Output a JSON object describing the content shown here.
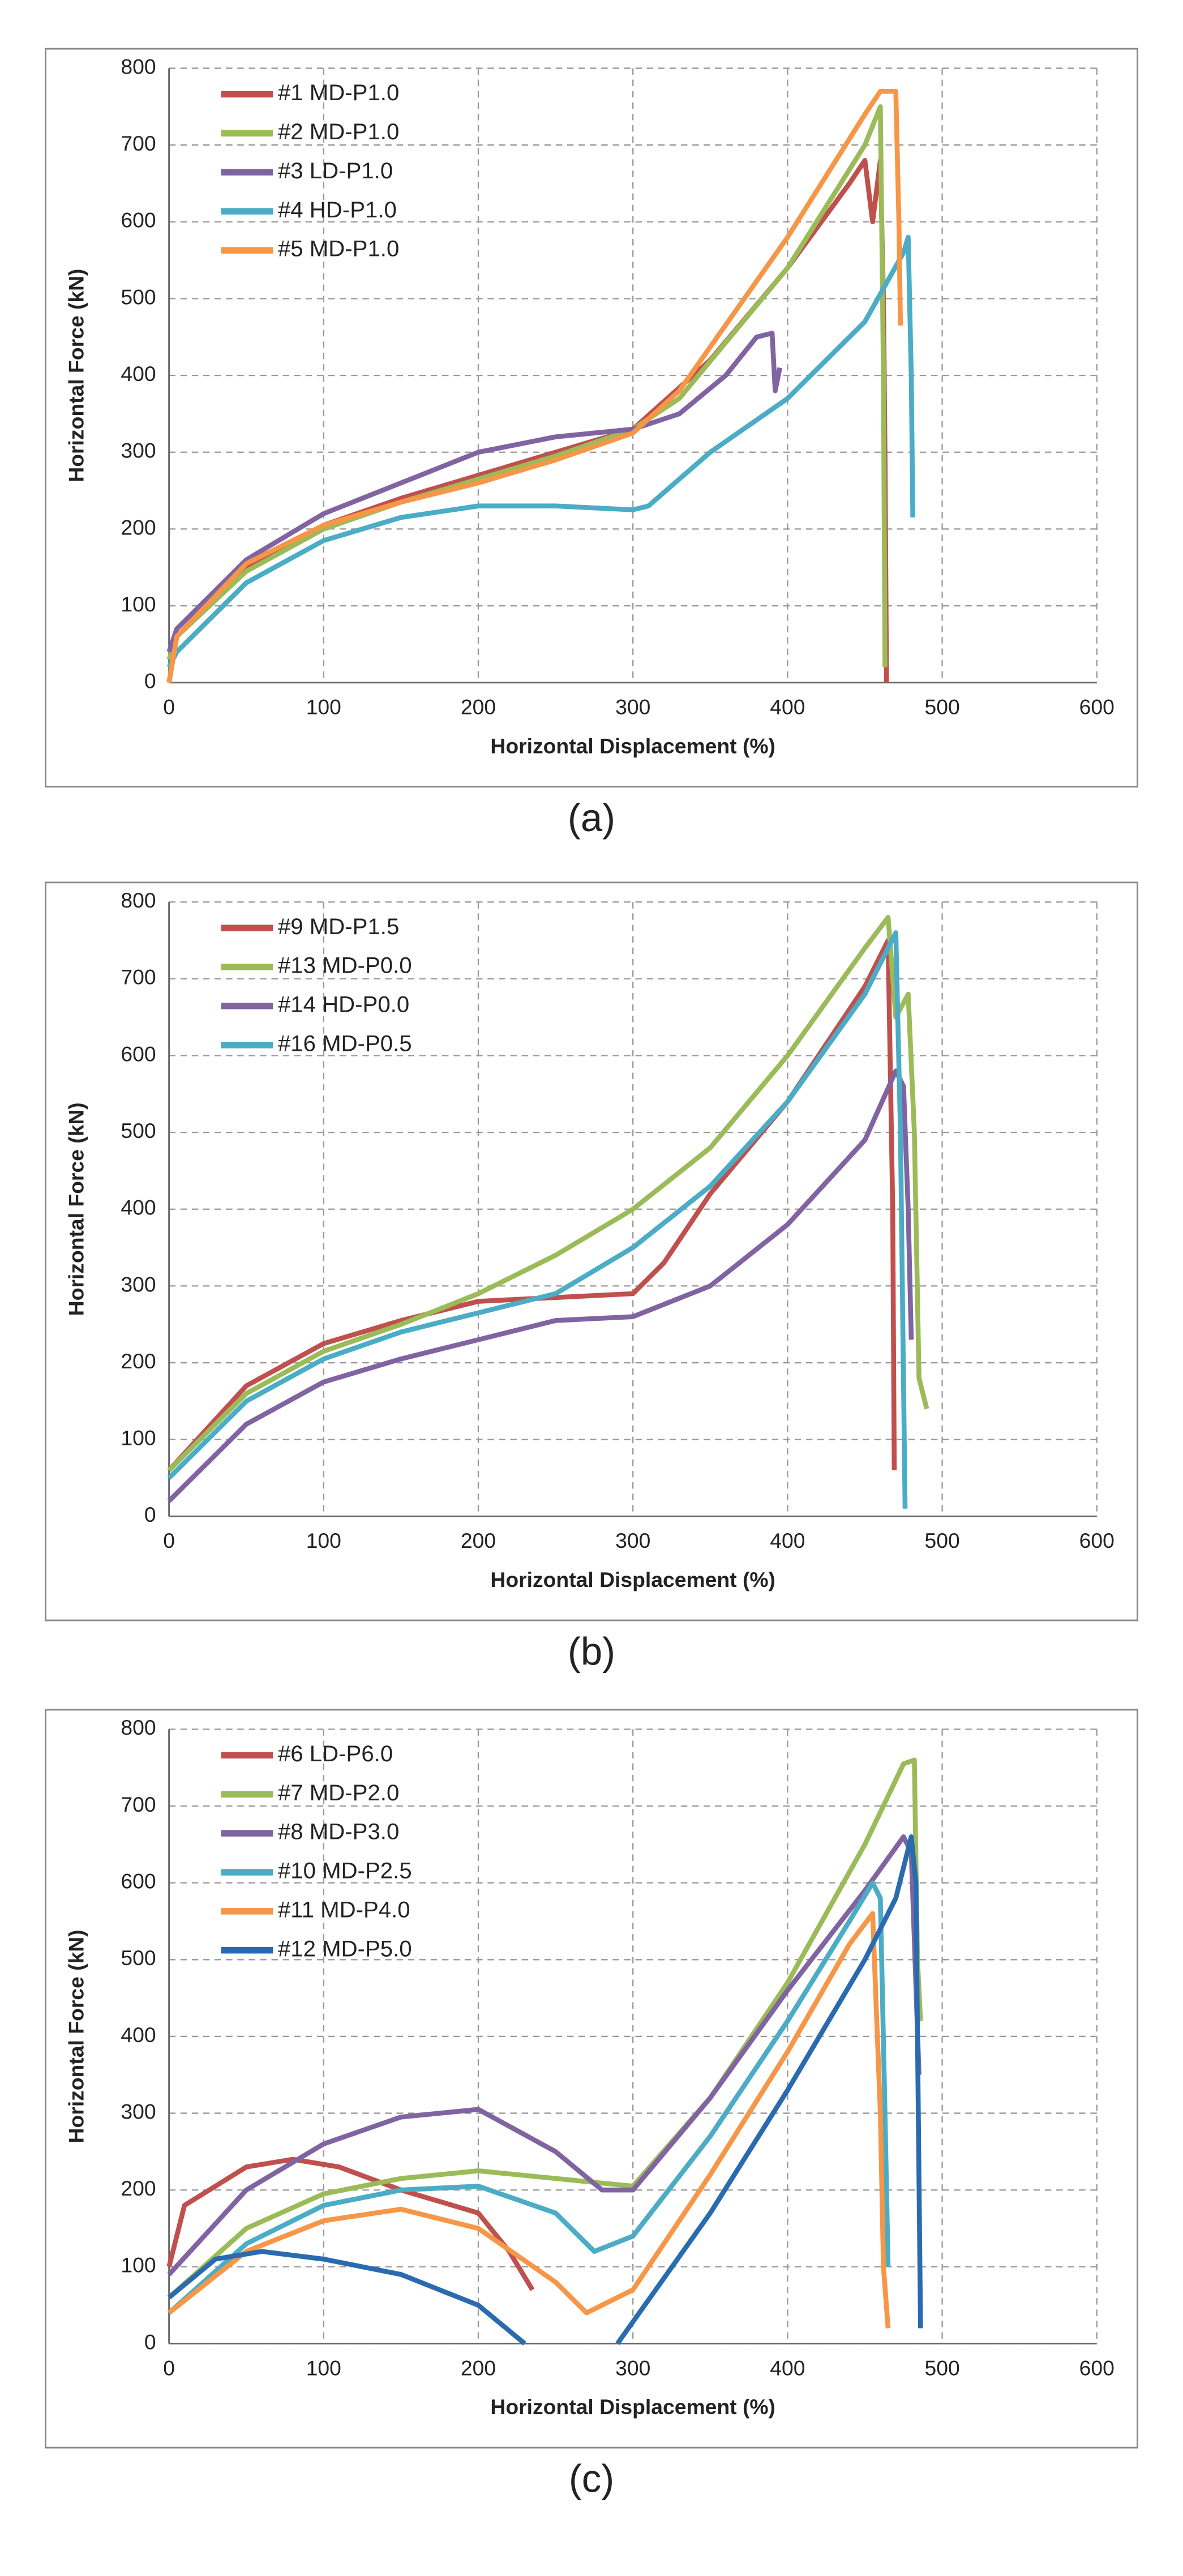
{
  "chart_data": [
    {
      "type": "line",
      "caption": "(a)",
      "x_label": "Horizontal Displacement (%)",
      "y_label": "Horizontal Force (kN)",
      "xlim": [
        0,
        600
      ],
      "ylim": [
        0,
        800
      ],
      "xticks": [
        0,
        100,
        200,
        300,
        400,
        500,
        600
      ],
      "yticks": [
        0,
        100,
        200,
        300,
        400,
        500,
        600,
        700,
        800
      ],
      "grid": true,
      "legend": "upper-left",
      "series": [
        {
          "name": "#1 MD-P1.0",
          "color": "#c0504d",
          "x": [
            0,
            5,
            50,
            100,
            150,
            200,
            250,
            300,
            350,
            400,
            440,
            450,
            455,
            460,
            462,
            463,
            464
          ],
          "values": [
            0,
            60,
            150,
            205,
            240,
            270,
            300,
            330,
            420,
            540,
            650,
            680,
            600,
            680,
            500,
            300,
            0
          ]
        },
        {
          "name": "#2 MD-P1.0",
          "color": "#9bbb59",
          "x": [
            0,
            5,
            50,
            100,
            150,
            200,
            250,
            300,
            330,
            400,
            450,
            460,
            462,
            463
          ],
          "values": [
            30,
            60,
            145,
            200,
            235,
            265,
            295,
            330,
            370,
            540,
            700,
            750,
            400,
            20
          ]
        },
        {
          "name": "#3 LD-P1.0",
          "color": "#8064a2",
          "x": [
            0,
            5,
            50,
            100,
            150,
            200,
            250,
            300,
            330,
            360,
            380,
            390,
            392,
            395
          ],
          "values": [
            40,
            70,
            160,
            220,
            260,
            300,
            320,
            330,
            350,
            400,
            450,
            455,
            380,
            410
          ]
        },
        {
          "name": "#4 HD-P1.0",
          "color": "#4bacc6",
          "x": [
            0,
            5,
            50,
            100,
            150,
            200,
            250,
            300,
            310,
            350,
            400,
            450,
            475,
            478,
            480,
            481
          ],
          "values": [
            20,
            40,
            130,
            185,
            215,
            230,
            230,
            225,
            230,
            300,
            370,
            470,
            560,
            580,
            400,
            215
          ]
        },
        {
          "name": "#5 MD-P1.0",
          "color": "#f79646",
          "x": [
            0,
            5,
            50,
            100,
            150,
            200,
            250,
            300,
            330,
            400,
            450,
            460,
            470,
            472,
            473
          ],
          "values": [
            0,
            60,
            155,
            205,
            235,
            260,
            290,
            325,
            380,
            580,
            740,
            770,
            770,
            600,
            465
          ]
        }
      ]
    },
    {
      "type": "line",
      "caption": "(b)",
      "x_label": "Horizontal Displacement (%)",
      "y_label": "Horizontal Force (kN)",
      "xlim": [
        0,
        600
      ],
      "ylim": [
        0,
        800
      ],
      "xticks": [
        0,
        100,
        200,
        300,
        400,
        500,
        600
      ],
      "yticks": [
        0,
        100,
        200,
        300,
        400,
        500,
        600,
        700,
        800
      ],
      "grid": true,
      "legend": "upper-left",
      "series": [
        {
          "name": "#9 MD-P1.5",
          "color": "#c0504d",
          "x": [
            0,
            50,
            100,
            150,
            200,
            250,
            300,
            320,
            350,
            400,
            450,
            465,
            468,
            469
          ],
          "values": [
            60,
            170,
            225,
            255,
            280,
            285,
            290,
            330,
            420,
            540,
            690,
            750,
            400,
            60
          ]
        },
        {
          "name": "#13 MD-P0.0",
          "color": "#9bbb59",
          "x": [
            0,
            50,
            100,
            150,
            200,
            250,
            300,
            350,
            400,
            450,
            465,
            470,
            478,
            482,
            485,
            490
          ],
          "values": [
            60,
            160,
            215,
            250,
            290,
            340,
            400,
            480,
            600,
            740,
            780,
            650,
            680,
            500,
            180,
            140
          ]
        },
        {
          "name": "#14 HD-P0.0",
          "color": "#8064a2",
          "x": [
            0,
            50,
            100,
            150,
            200,
            250,
            300,
            350,
            400,
            450,
            470,
            475,
            478,
            480
          ],
          "values": [
            20,
            120,
            175,
            205,
            230,
            255,
            260,
            300,
            380,
            490,
            580,
            560,
            400,
            230
          ]
        },
        {
          "name": "#16 MD-P0.5",
          "color": "#4bacc6",
          "x": [
            0,
            50,
            100,
            150,
            200,
            250,
            300,
            350,
            400,
            450,
            470,
            473,
            476
          ],
          "values": [
            50,
            150,
            205,
            240,
            265,
            290,
            350,
            430,
            540,
            680,
            760,
            500,
            10
          ]
        }
      ]
    },
    {
      "type": "line",
      "caption": "(c)",
      "x_label": "Horizontal Displacement (%)",
      "y_label": "Horizontal Force (kN)",
      "xlim": [
        0,
        600
      ],
      "ylim": [
        0,
        800
      ],
      "xticks": [
        0,
        100,
        200,
        300,
        400,
        500,
        600
      ],
      "yticks": [
        0,
        100,
        200,
        300,
        400,
        500,
        600,
        700,
        800
      ],
      "grid": true,
      "legend": "upper-left",
      "series": [
        {
          "name": "#6 LD-P6.0",
          "color": "#c0504d",
          "x": [
            0,
            10,
            50,
            80,
            110,
            150,
            200,
            220,
            235
          ],
          "values": [
            100,
            180,
            230,
            240,
            230,
            200,
            170,
            120,
            70
          ]
        },
        {
          "name": "#7 MD-P2.0",
          "color": "#9bbb59",
          "x": [
            0,
            50,
            100,
            150,
            200,
            250,
            300,
            350,
            400,
            450,
            475,
            482,
            484,
            486
          ],
          "values": [
            60,
            150,
            195,
            215,
            225,
            215,
            205,
            320,
            470,
            650,
            755,
            760,
            500,
            420
          ]
        },
        {
          "name": "#8 MD-P3.0",
          "color": "#8064a2",
          "x": [
            0,
            50,
            100,
            150,
            200,
            250,
            280,
            300,
            350,
            400,
            450,
            475,
            480,
            485
          ],
          "values": [
            90,
            200,
            260,
            295,
            305,
            250,
            200,
            200,
            320,
            460,
            590,
            660,
            640,
            350
          ]
        },
        {
          "name": "#10 MD-P2.5",
          "color": "#4bacc6",
          "x": [
            0,
            50,
            100,
            150,
            200,
            250,
            275,
            300,
            350,
            400,
            440,
            455,
            460,
            463,
            465
          ],
          "values": [
            40,
            130,
            180,
            200,
            205,
            170,
            120,
            140,
            270,
            420,
            550,
            600,
            580,
            300,
            100
          ]
        },
        {
          "name": "#11 MD-P4.0",
          "color": "#f79646",
          "x": [
            0,
            50,
            100,
            150,
            200,
            250,
            270,
            300,
            350,
            400,
            440,
            455,
            460,
            462,
            465
          ],
          "values": [
            40,
            120,
            160,
            175,
            150,
            80,
            40,
            70,
            220,
            380,
            520,
            560,
            300,
            100,
            20
          ]
        },
        {
          "name": "#12 MD-P5.0",
          "color": "#2a6bb0",
          "x": [
            0,
            30,
            60,
            100,
            150,
            200,
            230,
            260,
            290,
            350,
            400,
            450,
            470,
            480,
            483,
            486
          ],
          "values": [
            60,
            110,
            120,
            110,
            90,
            50,
            0,
            null,
            0,
            170,
            330,
            500,
            580,
            660,
            600,
            20
          ]
        }
      ]
    }
  ]
}
